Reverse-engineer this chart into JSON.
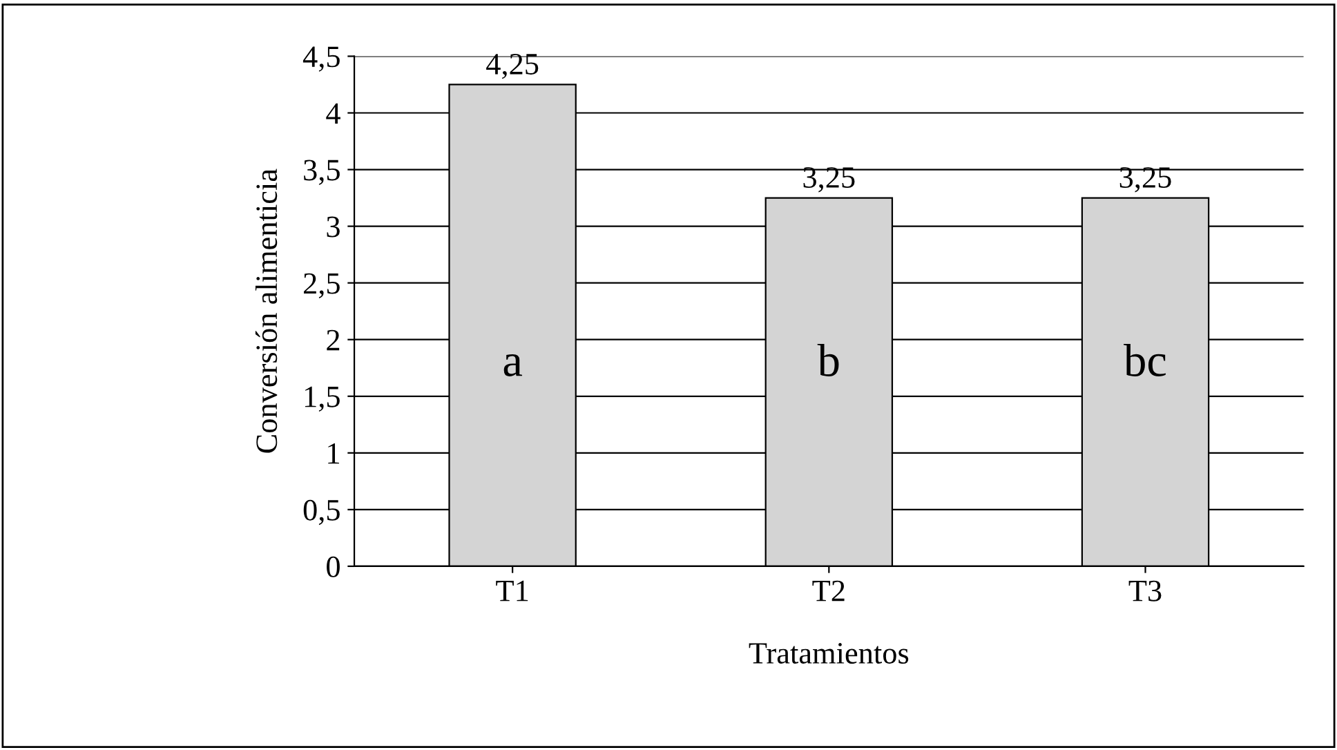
{
  "chart_data": {
    "type": "bar",
    "xlabel": "Tratamientos",
    "ylabel": "Conversión alimenticia",
    "categories": [
      "T1",
      "T2",
      "T3"
    ],
    "values": [
      4.25,
      3.25,
      3.25
    ],
    "color": "#d4d4d4",
    "value_labels": [
      "4,25",
      "3,25",
      "3,25"
    ],
    "ylim": [
      0,
      4.5
    ],
    "yticks": [
      0,
      {
        "value": 0.5,
        "label": "0,5"
      },
      1,
      {
        "value": 1.5,
        "label": "1,5"
      },
      2,
      {
        "value": 2.5,
        "label": "2,5"
      },
      3,
      {
        "value": 3.5,
        "label": "3,5"
      },
      4,
      {
        "value": 4.5,
        "label": "4,5"
      }
    ],
    "grid": "y",
    "legend": false,
    "annotations": [
      "a",
      "b",
      "bc"
    ]
  }
}
